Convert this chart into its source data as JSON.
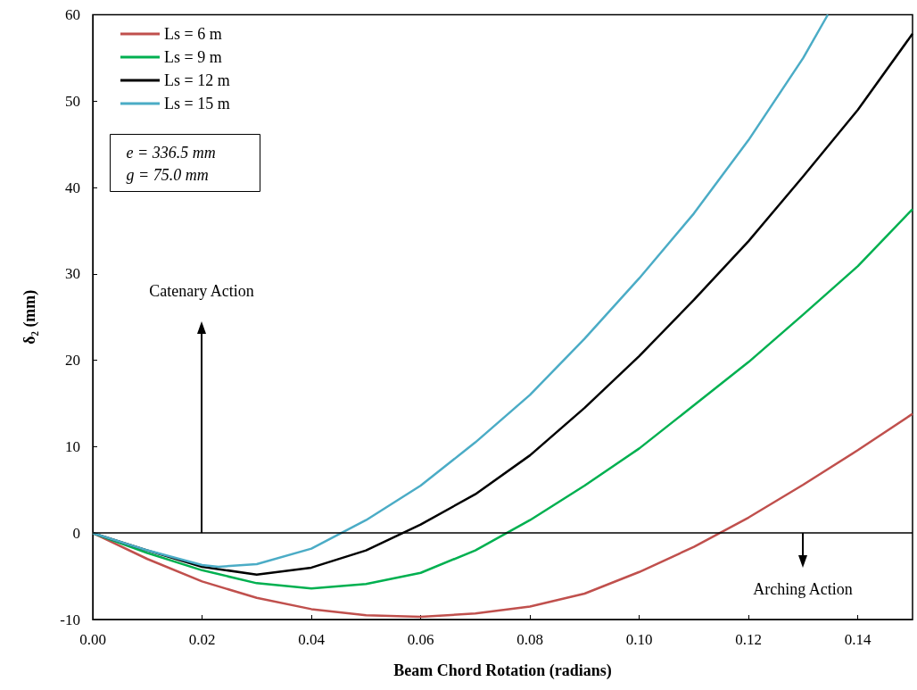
{
  "chart_data": {
    "type": "line",
    "xlabel": "Beam Chord Rotation (radians)",
    "ylabel": "δ₂ (mm)",
    "xlim": [
      0,
      0.15
    ],
    "xticks": [
      {
        "value": 0,
        "label": "0.00"
      },
      {
        "value": 0.02,
        "label": "0.02"
      },
      {
        "value": 0.04,
        "label": "0.04"
      },
      {
        "value": 0.06,
        "label": "0.06"
      },
      {
        "value": 0.08,
        "label": "0.08"
      },
      {
        "value": 0.1,
        "label": "0.10"
      },
      {
        "value": 0.12,
        "label": "0.12"
      },
      {
        "value": 0.14,
        "label": "0.14"
      }
    ],
    "ylim": [
      -10,
      60
    ],
    "yticks": [
      -10,
      0,
      10,
      20,
      30,
      40,
      50,
      60
    ],
    "grid": false,
    "legend": "top left",
    "marker": "none",
    "line_style": "solid",
    "x": [
      0,
      0.01,
      0.02,
      0.03,
      0.04,
      0.05,
      0.06,
      0.07,
      0.08,
      0.09,
      0.1,
      0.11,
      0.12,
      0.13,
      0.14,
      0.15
    ],
    "series": [
      {
        "name": "Ls = 6 m",
        "color": "#c0504d",
        "values": [
          0,
          -3.0,
          -5.6,
          -7.5,
          -8.8,
          -9.5,
          -9.7,
          -9.3,
          -8.5,
          -7.0,
          -4.5,
          -1.6,
          1.8,
          5.6,
          9.6,
          13.8
        ]
      },
      {
        "name": "Ls = 9 m",
        "color": "#00b050",
        "values": [
          0,
          -2.3,
          -4.3,
          -5.8,
          -6.4,
          -5.9,
          -4.6,
          -2.0,
          1.5,
          5.5,
          9.8,
          14.8,
          19.8,
          25.3,
          30.9,
          37.5
        ]
      },
      {
        "name": "Ls = 12 m",
        "color": "#000000",
        "values": [
          0,
          -2.0,
          -3.9,
          -4.8,
          -4.0,
          -2.0,
          1.0,
          4.5,
          9.0,
          14.5,
          20.5,
          27.0,
          33.8,
          41.3,
          49.0,
          57.8
        ]
      },
      {
        "name": "Ls = 15 m",
        "color": "#4bacc6",
        "x": [
          0,
          0.01,
          0.02,
          0.023,
          0.03,
          0.04,
          0.05,
          0.06,
          0.07,
          0.08,
          0.09,
          0.1,
          0.11,
          0.12,
          0.13,
          0.1345
        ],
        "values": [
          0,
          -2.0,
          -3.7,
          -3.9,
          -3.6,
          -1.8,
          1.5,
          5.5,
          10.5,
          16.0,
          22.5,
          29.5,
          37.0,
          45.5,
          55.0,
          60
        ]
      }
    ],
    "ref_lines": [
      {
        "axis": "y",
        "value": 0,
        "color": "#000000"
      }
    ],
    "annotations": [
      "e = 336.5 mm\ng = 75.0 mm",
      "Catenary Action",
      "Arching Action"
    ]
  }
}
